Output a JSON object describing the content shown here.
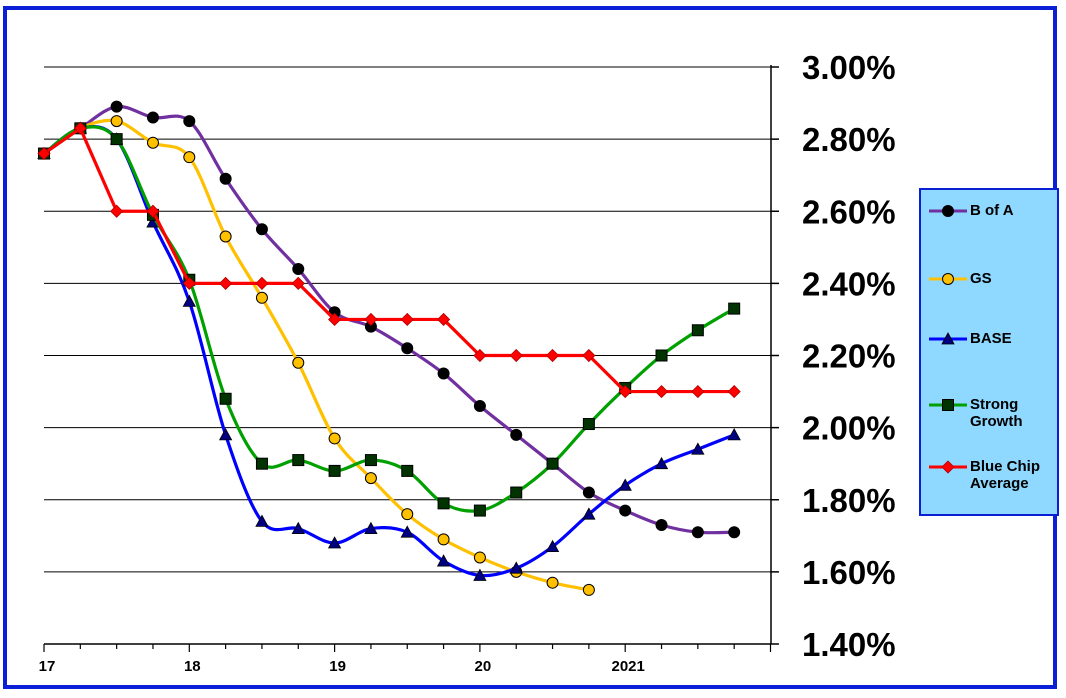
{
  "chart_data": {
    "type": "line",
    "y_tick_labels": [
      "3.00%",
      "2.80%",
      "2.60%",
      "2.40%",
      "2.20%",
      "2.00%",
      "1.80%",
      "1.60%",
      "1.40%"
    ],
    "x_tick_labels": [
      "17",
      "18",
      "19",
      "20",
      "2021"
    ],
    "ylim": [
      1.4,
      3.0
    ],
    "x_range": [
      2017.0,
      2022.0
    ],
    "y_axis_side": "right",
    "grid": "horizontal",
    "legend_position": "right",
    "series": [
      {
        "name": "B of A",
        "color": "#7030a0",
        "marker": "circle",
        "marker_fill": "#000000",
        "x": [
          2017.0,
          2017.25,
          2017.5,
          2017.75,
          2018.0,
          2018.25,
          2018.5,
          2018.75,
          2019.0,
          2019.25,
          2019.5,
          2019.75,
          2020.0,
          2020.25,
          2020.5,
          2020.75,
          2021.0,
          2021.25,
          2021.5,
          2021.75
        ],
        "values": [
          2.76,
          2.83,
          2.89,
          2.86,
          2.85,
          2.69,
          2.55,
          2.44,
          2.32,
          2.28,
          2.22,
          2.15,
          2.06,
          1.98,
          1.9,
          1.82,
          1.77,
          1.73,
          1.71,
          1.71
        ]
      },
      {
        "name": "GS",
        "color": "#ffc000",
        "marker": "circle",
        "marker_fill": "#ffc000",
        "x": [
          2017.0,
          2017.25,
          2017.5,
          2017.75,
          2018.0,
          2018.25,
          2018.5,
          2018.75,
          2019.0,
          2019.25,
          2019.5,
          2019.75,
          2020.0,
          2020.25,
          2020.5,
          2020.75
        ],
        "values": [
          2.76,
          2.83,
          2.85,
          2.79,
          2.75,
          2.53,
          2.36,
          2.18,
          1.97,
          1.86,
          1.76,
          1.69,
          1.64,
          1.6,
          1.57,
          1.55
        ]
      },
      {
        "name": "BASE",
        "color": "#0000ff",
        "marker": "triangle",
        "marker_fill": "#000080",
        "x": [
          2017.0,
          2017.25,
          2017.5,
          2017.75,
          2018.0,
          2018.25,
          2018.5,
          2018.75,
          2019.0,
          2019.25,
          2019.5,
          2019.75,
          2020.0,
          2020.25,
          2020.5,
          2020.75,
          2021.0,
          2021.25,
          2021.5,
          2021.75
        ],
        "values": [
          2.76,
          2.83,
          2.8,
          2.57,
          2.35,
          1.98,
          1.74,
          1.72,
          1.68,
          1.72,
          1.71,
          1.63,
          1.59,
          1.61,
          1.67,
          1.76,
          1.84,
          1.9,
          1.94,
          1.98
        ]
      },
      {
        "name": "Strong Growth",
        "color": "#00a000",
        "marker": "square",
        "marker_fill": "#003300",
        "x": [
          2017.0,
          2017.25,
          2017.5,
          2017.75,
          2018.0,
          2018.25,
          2018.5,
          2018.75,
          2019.0,
          2019.25,
          2019.5,
          2019.75,
          2020.0,
          2020.25,
          2020.5,
          2020.75,
          2021.0,
          2021.25,
          2021.5,
          2021.75
        ],
        "values": [
          2.76,
          2.83,
          2.8,
          2.59,
          2.41,
          2.08,
          1.9,
          1.91,
          1.88,
          1.91,
          1.88,
          1.79,
          1.77,
          1.82,
          1.9,
          2.01,
          2.11,
          2.2,
          2.27,
          2.33
        ]
      },
      {
        "name": "Blue Chip Average",
        "color": "#ff0000",
        "marker": "diamond",
        "marker_fill": "#ff0000",
        "x": [
          2017.0,
          2017.25,
          2017.5,
          2017.75,
          2018.0,
          2018.25,
          2018.5,
          2018.75,
          2019.0,
          2019.25,
          2019.5,
          2019.75,
          2020.0,
          2020.25,
          2020.5,
          2020.75,
          2021.0,
          2021.25,
          2021.5,
          2021.75
        ],
        "values": [
          2.76,
          2.83,
          2.6,
          2.6,
          2.4,
          2.4,
          2.4,
          2.4,
          2.3,
          2.3,
          2.3,
          2.3,
          2.2,
          2.2,
          2.2,
          2.2,
          2.1,
          2.1,
          2.1,
          2.1
        ]
      }
    ]
  },
  "legend": {
    "items": [
      {
        "label_lines": [
          "B of A"
        ]
      },
      {
        "label_lines": [
          "GS"
        ]
      },
      {
        "label_lines": [
          "BASE"
        ]
      },
      {
        "label_lines": [
          "Strong",
          "Growth"
        ]
      },
      {
        "label_lines": [
          "Blue Chip",
          "Average"
        ]
      }
    ]
  }
}
